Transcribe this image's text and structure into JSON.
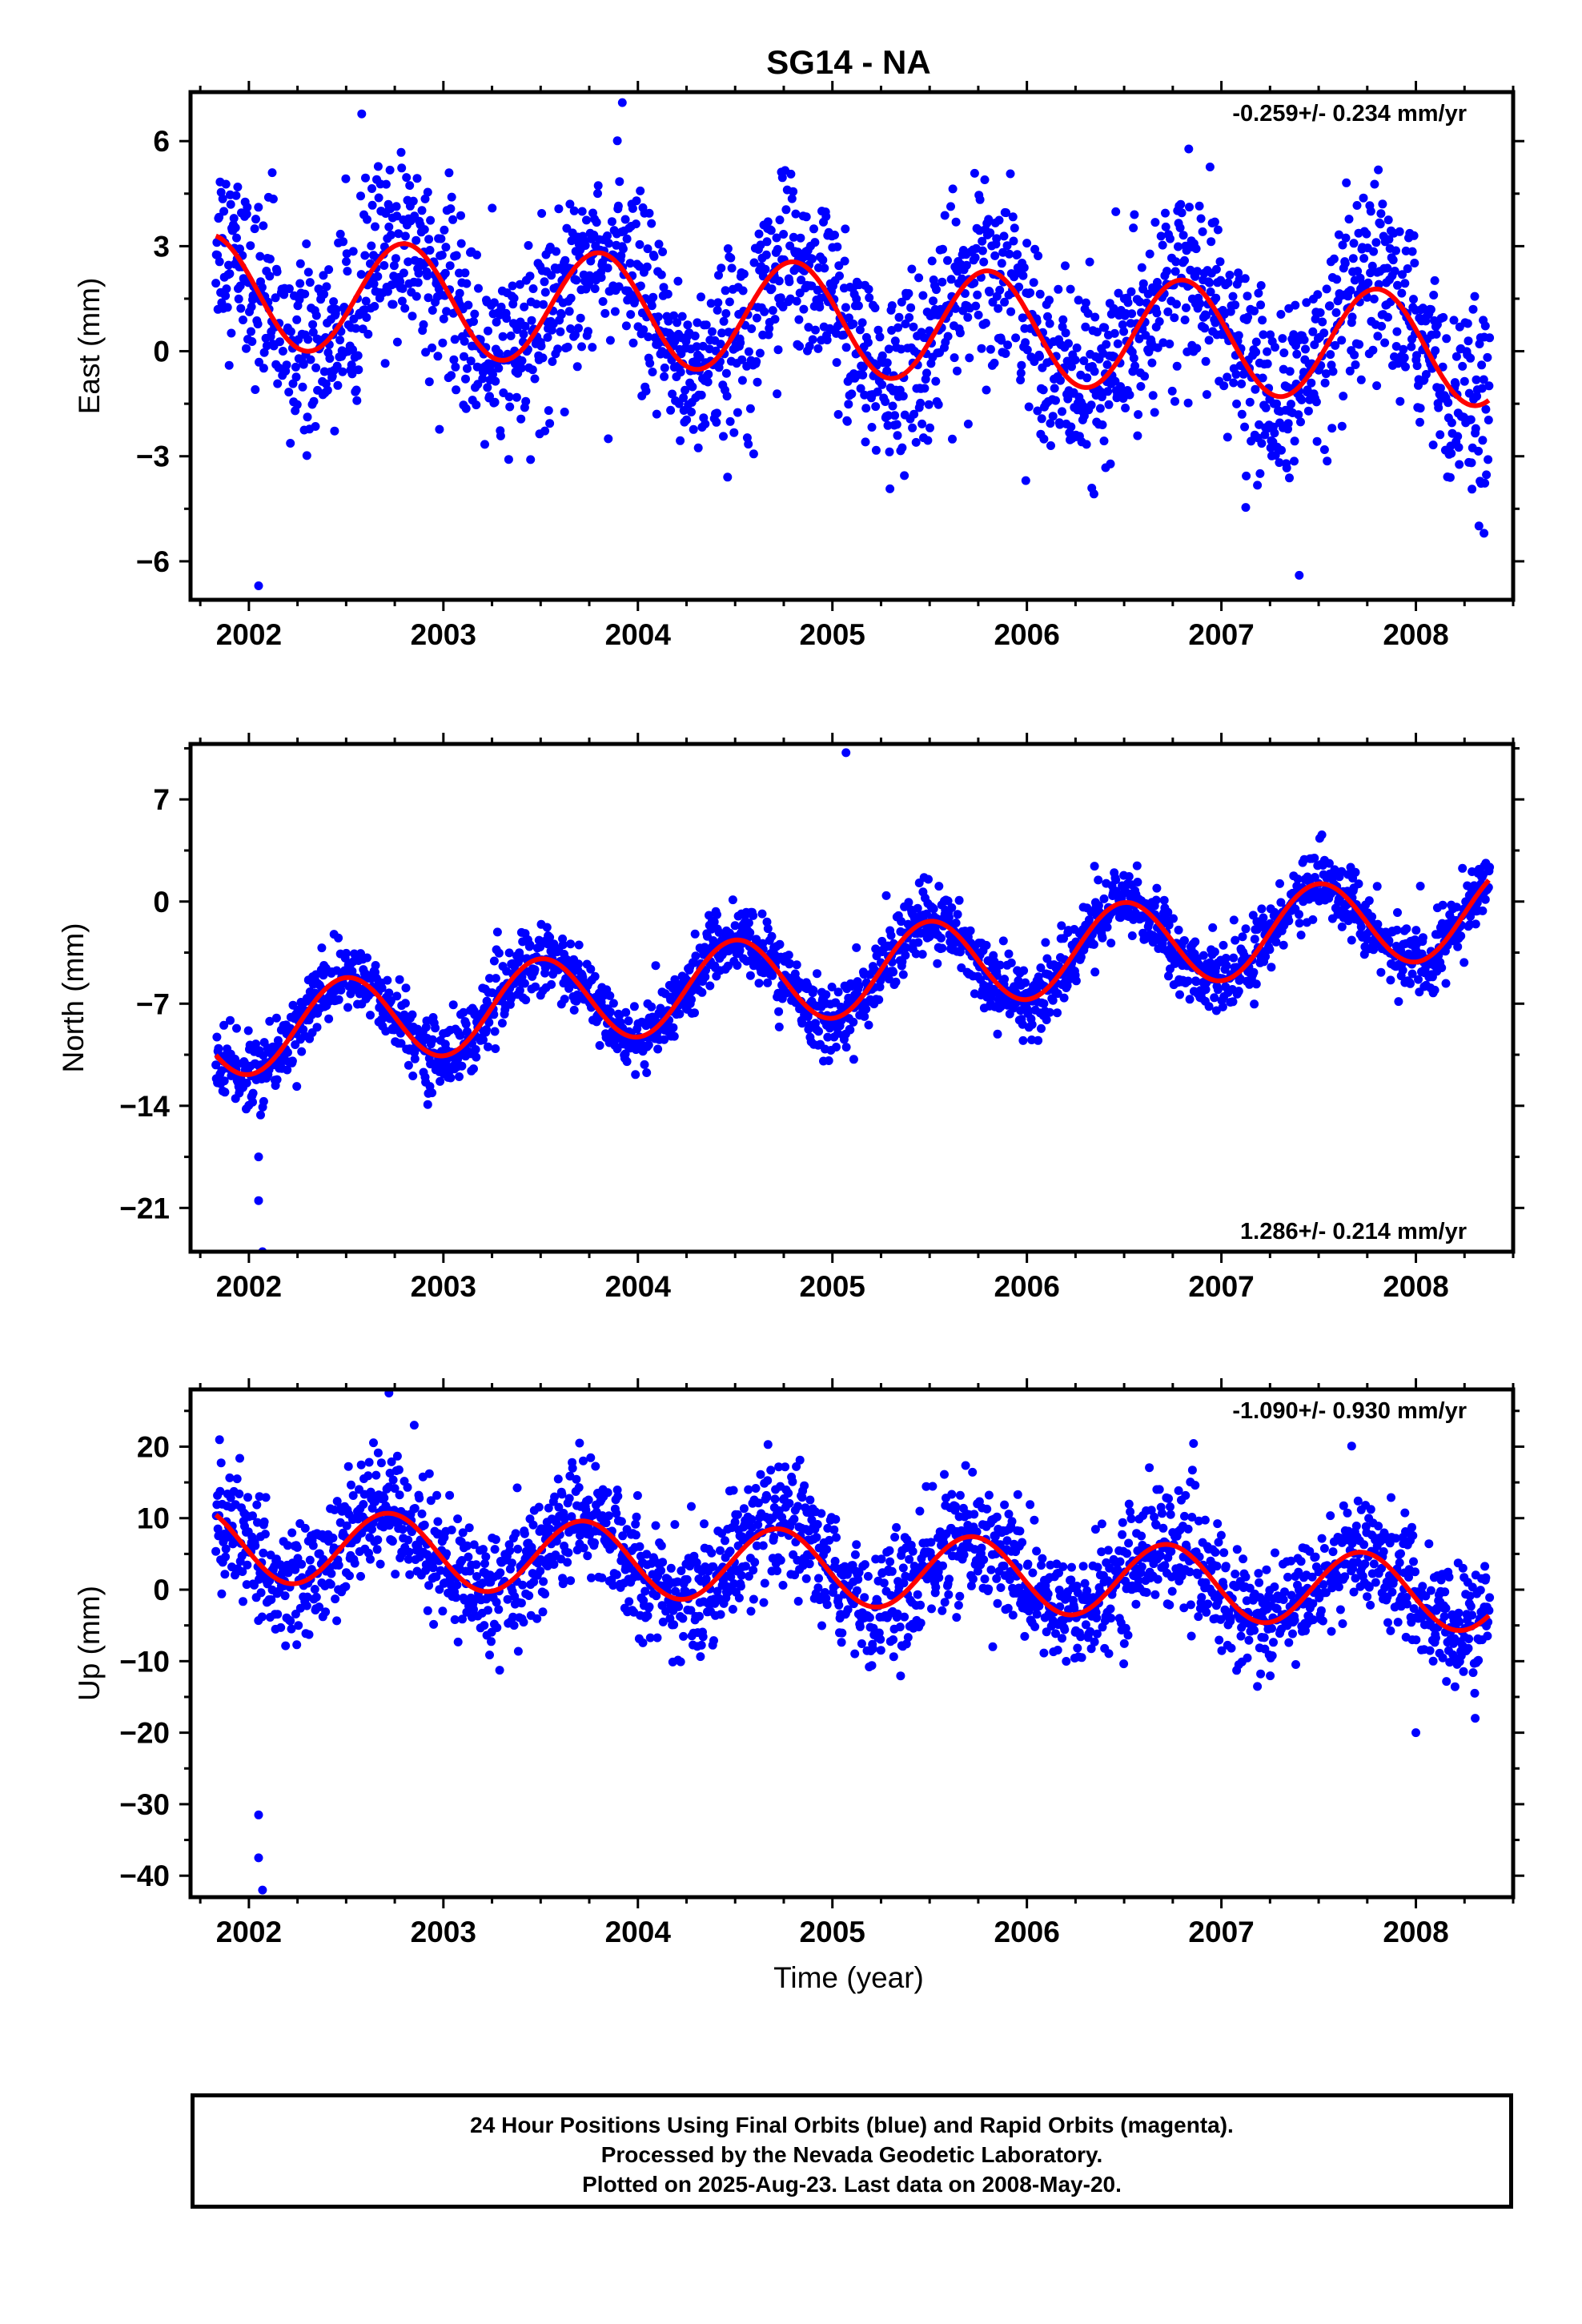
{
  "title": "SG14 - NA",
  "colors": {
    "points": "#0000ff",
    "fit": "#ff0000",
    "frame": "#000000"
  },
  "chart_data": [
    {
      "type": "scatter",
      "panel": "east",
      "ylabel": "East (mm)",
      "rate": "-0.259+/- 0.234 mm/yr",
      "rate_position": "top-right",
      "xlim": [
        2001.7,
        2008.5
      ],
      "ylim": [
        -7.1,
        7.4
      ],
      "yticks": [
        6,
        3,
        0,
        -3,
        -6
      ],
      "ytick_labels": [
        "6",
        "3",
        "0",
        "−3",
        "−6"
      ],
      "xticks": [
        2002,
        2003,
        2004,
        2005,
        2006,
        2007,
        2008
      ],
      "xtick_labels": [
        "2002",
        "2003",
        "2004",
        "2005",
        "2006",
        "2007",
        "2008"
      ],
      "time_range": [
        2001.83,
        2008.38
      ],
      "fit": {
        "offset": 0.9,
        "trend": -0.259,
        "amplitude": 1.6,
        "peak_phase": 0.8
      },
      "scatter": {
        "noise": 1.3,
        "daily": true
      },
      "outliers": [
        {
          "x": 2002.05,
          "y": -6.7
        },
        {
          "x": 2002.12,
          "y": 5.1
        },
        {
          "x": 2003.92,
          "y": 7.1
        },
        {
          "x": 2007.4,
          "y": -6.4
        },
        {
          "x": 2008.35,
          "y": -5.2
        }
      ]
    },
    {
      "type": "scatter",
      "panel": "north",
      "ylabel": "North (mm)",
      "rate": "1.286+/- 0.214 mm/yr",
      "rate_position": "bottom-right",
      "xlim": [
        2001.7,
        2008.5
      ],
      "ylim": [
        -24.0,
        10.8
      ],
      "yticks": [
        7,
        0,
        -7,
        -14,
        -21
      ],
      "ytick_labels": [
        "7",
        "0",
        "−7",
        "−14",
        "−21"
      ],
      "xticks": [
        2002,
        2003,
        2004,
        2005,
        2006,
        2007,
        2008
      ],
      "xtick_labels": [
        "2002",
        "2003",
        "2004",
        "2005",
        "2006",
        "2007",
        "2008"
      ],
      "time_range": [
        2001.83,
        2008.38
      ],
      "fit": {
        "offset": -5.0,
        "trend": 1.286,
        "amplitude": 3.0,
        "peak_phase": 0.5
      },
      "scatter": {
        "noise": 1.2,
        "daily": true
      },
      "outliers": [
        {
          "x": 2002.05,
          "y": -17.5
        },
        {
          "x": 2002.05,
          "y": -20.5
        },
        {
          "x": 2002.07,
          "y": -24.0
        },
        {
          "x": 2005.07,
          "y": 10.2
        }
      ]
    },
    {
      "type": "scatter",
      "panel": "up",
      "ylabel": "Up (mm)",
      "xlabel": "Time (year)",
      "rate": "-1.090+/- 0.930 mm/yr",
      "rate_position": "top-right",
      "xlim": [
        2001.7,
        2008.5
      ],
      "ylim": [
        -43,
        28
      ],
      "yticks": [
        20,
        10,
        0,
        -10,
        -20,
        -30,
        -40
      ],
      "ytick_labels": [
        "20",
        "10",
        "0",
        "−10",
        "−20",
        "−30",
        "−40"
      ],
      "xticks": [
        2002,
        2003,
        2004,
        2005,
        2006,
        2007,
        2008
      ],
      "xtick_labels": [
        "2002",
        "2003",
        "2004",
        "2005",
        "2006",
        "2007",
        "2008"
      ],
      "time_range": [
        2001.83,
        2008.38
      ],
      "fit": {
        "offset": 3.0,
        "trend": -1.09,
        "amplitude": 5.2,
        "peak_phase": 0.72
      },
      "scatter": {
        "noise": 4.2,
        "daily": true
      },
      "outliers": [
        {
          "x": 2002.05,
          "y": -31.5
        },
        {
          "x": 2002.05,
          "y": -37.5
        },
        {
          "x": 2002.07,
          "y": -42
        },
        {
          "x": 2002.72,
          "y": 27.5
        },
        {
          "x": 2002.85,
          "y": 23
        },
        {
          "x": 2003.7,
          "y": 20.5
        },
        {
          "x": 2008.0,
          "y": -20
        }
      ]
    }
  ],
  "footer": {
    "line1": "24 Hour Positions Using Final Orbits (blue) and Rapid Orbits (magenta).",
    "line2": "Processed by the Nevada Geodetic Laboratory.",
    "line3": "Plotted on 2025-Aug-23. Last data on 2008-May-20."
  }
}
